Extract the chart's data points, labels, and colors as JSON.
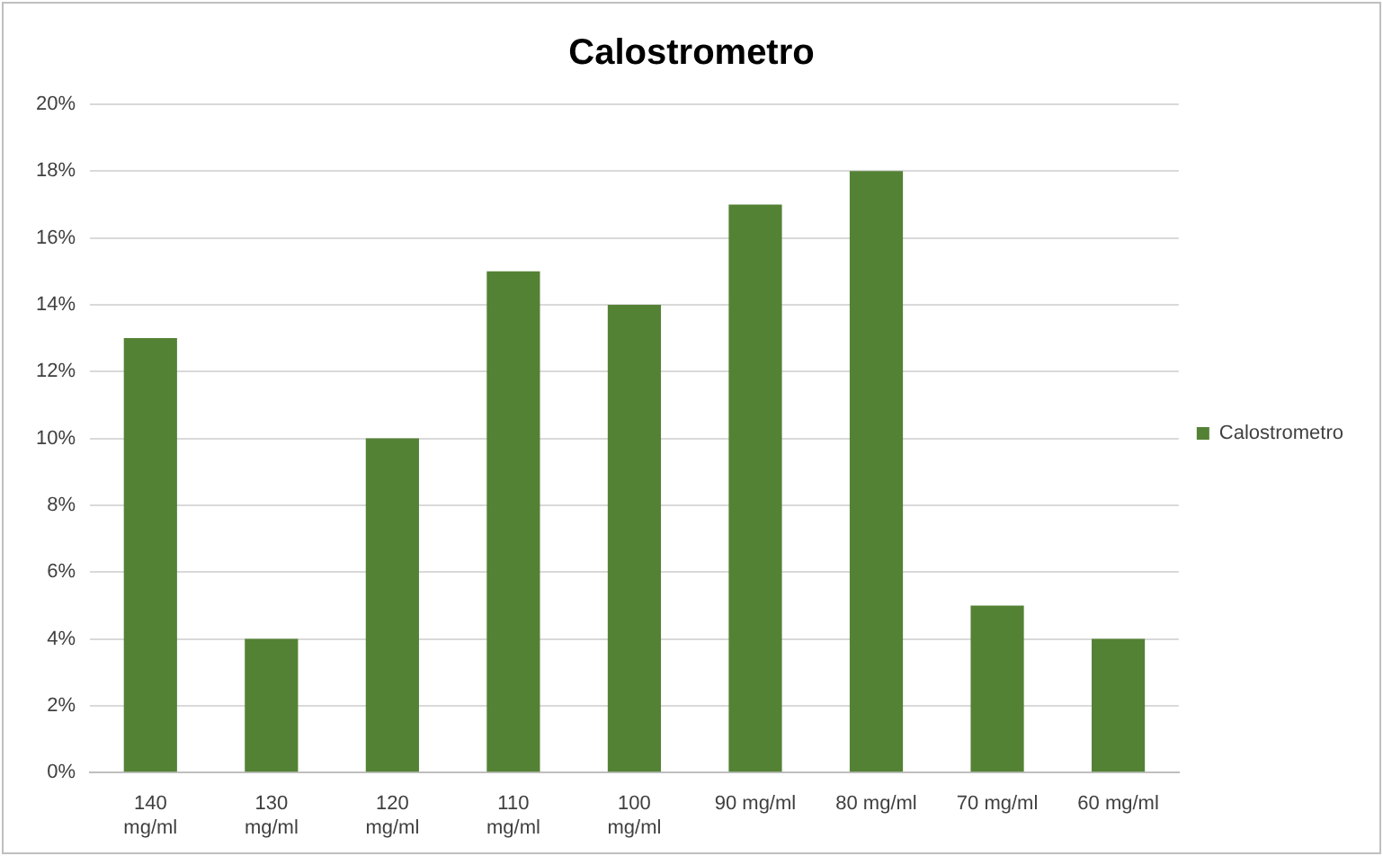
{
  "chart_data": {
    "type": "bar",
    "title": "Calostrometro",
    "categories": [
      "140 mg/ml",
      "130 mg/ml",
      "120 mg/ml",
      "110 mg/ml",
      "100 mg/ml",
      "90 mg/ml",
      "80 mg/ml",
      "70 mg/ml",
      "60 mg/ml"
    ],
    "series": [
      {
        "name": "Calostrometro",
        "color": "#548235",
        "values": [
          13,
          4,
          10,
          15,
          14,
          17,
          18,
          5,
          4
        ]
      }
    ],
    "ylim": [
      0,
      20
    ],
    "yticks": [
      {
        "value": 0,
        "label": "0%"
      },
      {
        "value": 2,
        "label": "2%"
      },
      {
        "value": 4,
        "label": "4%"
      },
      {
        "value": 6,
        "label": "6%"
      },
      {
        "value": 8,
        "label": "8%"
      },
      {
        "value": 10,
        "label": "10%"
      },
      {
        "value": 12,
        "label": "12%"
      },
      {
        "value": 14,
        "label": "14%"
      },
      {
        "value": 16,
        "label": "16%"
      },
      {
        "value": 18,
        "label": "18%"
      },
      {
        "value": 20,
        "label": "20%"
      }
    ],
    "grid": "y",
    "legend": "right"
  }
}
